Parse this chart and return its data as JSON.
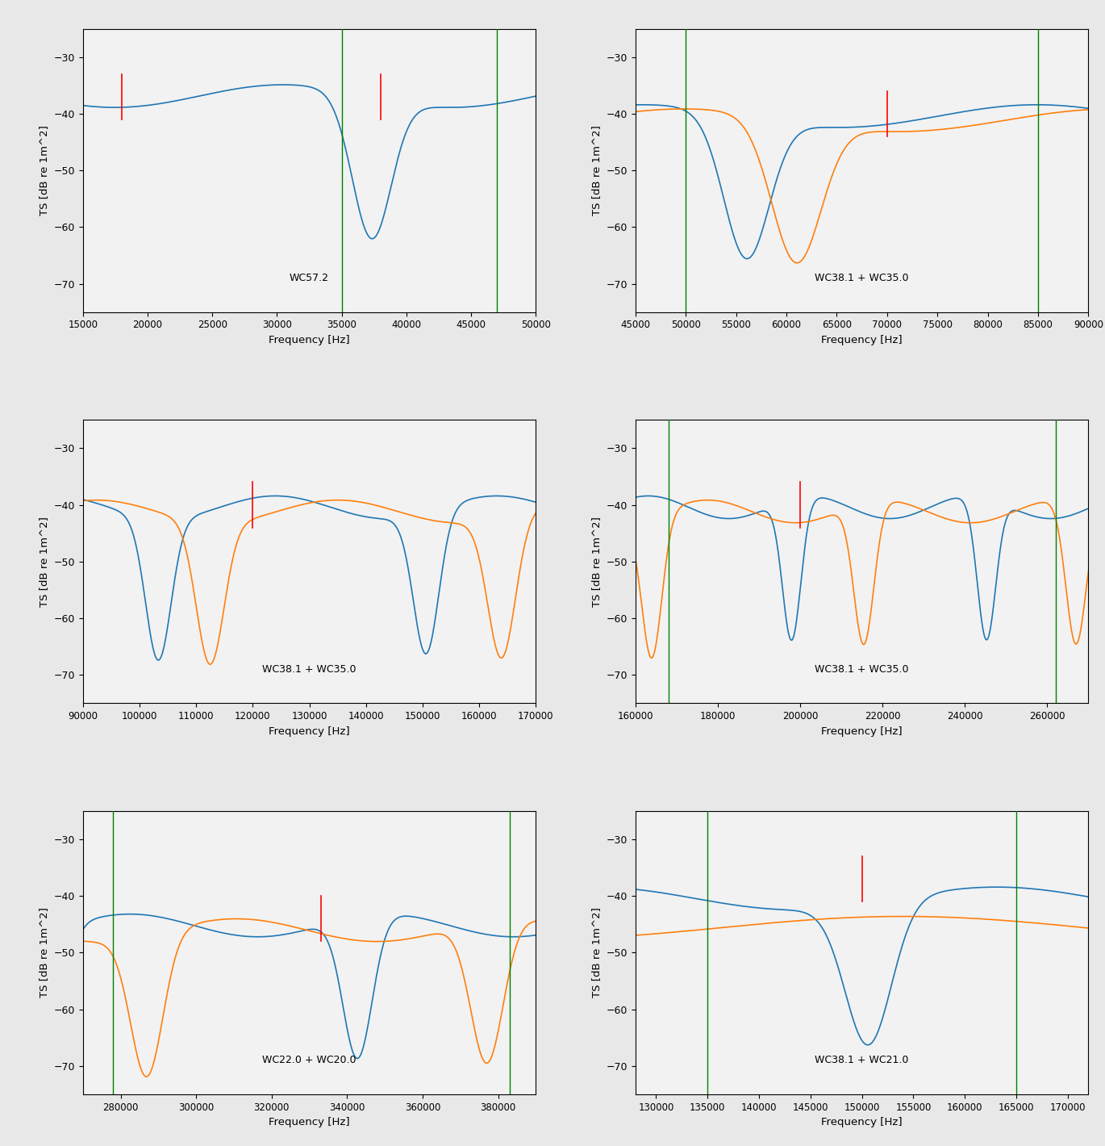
{
  "panels": [
    {
      "label": "WC57.2",
      "xlim": [
        15000,
        50000
      ],
      "ylim": [
        -75,
        -25
      ],
      "yticks": [
        -70,
        -60,
        -50,
        -40,
        -30
      ],
      "xticks": [
        15000,
        20000,
        25000,
        30000,
        35000,
        40000,
        45000,
        50000
      ],
      "red_lines": [
        18000,
        38000
      ],
      "red_yrange": [
        [
          -41,
          -33
        ],
        [
          -41,
          -33
        ]
      ],
      "green_lines": [
        35000,
        47000
      ],
      "spheres": [
        {
          "name": "WC57.2",
          "diameter_mm": 57.2,
          "color": "#1f77b4"
        }
      ]
    },
    {
      "label": "WC38.1 + WC35.0",
      "xlim": [
        45000,
        90000
      ],
      "ylim": [
        -75,
        -25
      ],
      "yticks": [
        -70,
        -60,
        -50,
        -40,
        -30
      ],
      "xticks": [
        45000,
        50000,
        55000,
        60000,
        65000,
        70000,
        75000,
        80000,
        85000,
        90000
      ],
      "red_lines": [
        70000
      ],
      "red_yrange": [
        [
          -44,
          -36
        ]
      ],
      "green_lines": [
        50000,
        85000
      ],
      "spheres": [
        {
          "name": "WC38.1",
          "diameter_mm": 38.1,
          "color": "#1f77b4"
        },
        {
          "name": "WC35.0",
          "diameter_mm": 35.0,
          "color": "#ff7f0e"
        }
      ]
    },
    {
      "label": "WC38.1 + WC35.0",
      "xlim": [
        90000,
        170000
      ],
      "ylim": [
        -75,
        -25
      ],
      "yticks": [
        -70,
        -60,
        -50,
        -40,
        -30
      ],
      "xticks": [
        90000,
        100000,
        110000,
        120000,
        130000,
        140000,
        150000,
        160000,
        170000
      ],
      "red_lines": [
        120000
      ],
      "red_yrange": [
        [
          -44,
          -36
        ]
      ],
      "green_lines": [],
      "spheres": [
        {
          "name": "WC38.1",
          "diameter_mm": 38.1,
          "color": "#1f77b4"
        },
        {
          "name": "WC35.0",
          "diameter_mm": 35.0,
          "color": "#ff7f0e"
        }
      ]
    },
    {
      "label": "WC38.1 + WC35.0",
      "xlim": [
        160000,
        270000
      ],
      "ylim": [
        -75,
        -25
      ],
      "yticks": [
        -70,
        -60,
        -50,
        -40,
        -30
      ],
      "xticks": [
        160000,
        180000,
        200000,
        220000,
        240000,
        260000
      ],
      "red_lines": [
        200000
      ],
      "red_yrange": [
        [
          -44,
          -36
        ]
      ],
      "green_lines": [
        168000,
        262000
      ],
      "spheres": [
        {
          "name": "WC38.1",
          "diameter_mm": 38.1,
          "color": "#1f77b4"
        },
        {
          "name": "WC35.0",
          "diameter_mm": 35.0,
          "color": "#ff7f0e"
        }
      ]
    },
    {
      "label": "WC22.0 + WC20.0",
      "xlim": [
        270000,
        390000
      ],
      "ylim": [
        -75,
        -25
      ],
      "yticks": [
        -70,
        -60,
        -50,
        -40,
        -30
      ],
      "xticks": [
        280000,
        300000,
        320000,
        340000,
        360000,
        380000
      ],
      "red_lines": [
        333000
      ],
      "red_yrange": [
        [
          -48,
          -40
        ]
      ],
      "green_lines": [
        278000,
        383000
      ],
      "spheres": [
        {
          "name": "WC22.0",
          "diameter_mm": 22.0,
          "color": "#1f77b4"
        },
        {
          "name": "WC20.0",
          "diameter_mm": 20.0,
          "color": "#ff7f0e"
        }
      ]
    },
    {
      "label": "WC38.1 + WC21.0",
      "xlim": [
        128000,
        172000
      ],
      "ylim": [
        -75,
        -25
      ],
      "yticks": [
        -70,
        -60,
        -50,
        -40,
        -30
      ],
      "xticks": [
        130000,
        135000,
        140000,
        145000,
        150000,
        155000,
        160000,
        165000,
        170000
      ],
      "red_lines": [
        150000
      ],
      "red_yrange": [
        [
          -41,
          -33
        ]
      ],
      "green_lines": [
        135000,
        165000
      ],
      "spheres": [
        {
          "name": "WC38.1",
          "diameter_mm": 38.1,
          "color": "#1f77b4"
        },
        {
          "name": "WC21.0",
          "diameter_mm": 21.0,
          "color": "#ff7f0e"
        }
      ]
    }
  ],
  "ylabel": "TS [dB re 1m^2]",
  "xlabel": "Frequency [Hz]",
  "red_color": "red",
  "green_color": "green",
  "background_color": "#e8e8e8",
  "plot_bg_color": "#f2f2f2"
}
